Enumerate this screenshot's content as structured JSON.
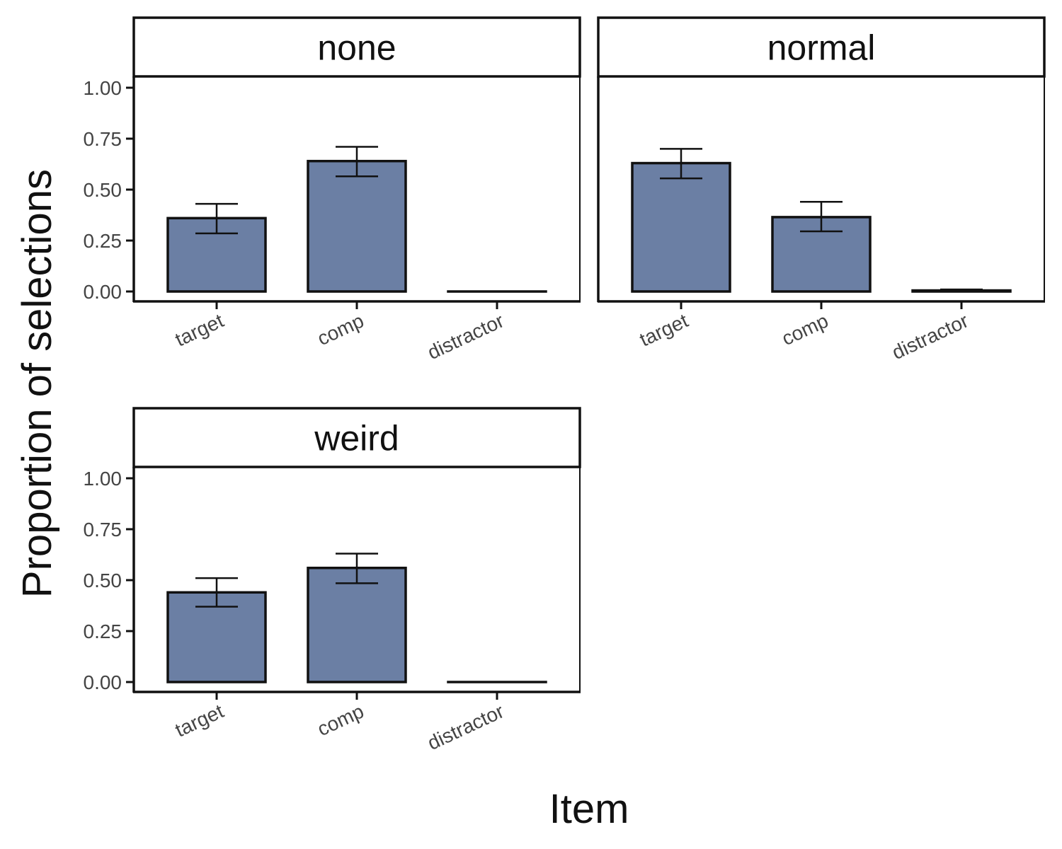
{
  "chart_data": {
    "type": "bar",
    "xlabel": "Item",
    "ylabel": "Proportion of selections",
    "categories": [
      "target",
      "comp",
      "distractor"
    ],
    "ylim": [
      0,
      1
    ],
    "yticks": [
      "0.00",
      "0.25",
      "0.50",
      "0.75",
      "1.00"
    ],
    "yticks_values": [
      0,
      0.25,
      0.5,
      0.75,
      1
    ],
    "bar_fill": "#6b7fa4",
    "bar_stroke": "#111111",
    "error_bars": true,
    "grid": false,
    "legend": "none",
    "panels": [
      {
        "label": "none",
        "values": [
          0.36,
          0.64,
          0.0
        ],
        "ci_low": [
          0.285,
          0.565,
          0.0
        ],
        "ci_high": [
          0.43,
          0.71,
          0.0
        ]
      },
      {
        "label": "normal",
        "values": [
          0.63,
          0.365,
          0.005
        ],
        "ci_low": [
          0.555,
          0.295,
          0.0
        ],
        "ci_high": [
          0.7,
          0.44,
          0.01
        ]
      },
      {
        "label": "weird",
        "values": [
          0.44,
          0.56,
          0.0
        ],
        "ci_low": [
          0.37,
          0.485,
          0.0
        ],
        "ci_high": [
          0.51,
          0.63,
          0.0
        ]
      }
    ]
  }
}
